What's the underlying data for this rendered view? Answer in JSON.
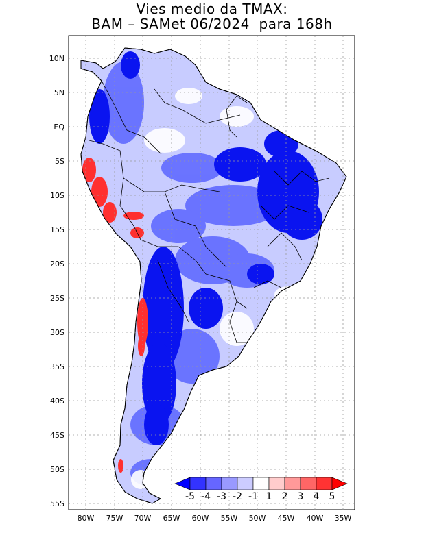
{
  "title": {
    "line1": "Vies medio da TMAX:",
    "line2": "BAM – SAMet 06/2024  para 168h"
  },
  "axes": {
    "lat_labels": [
      "10N",
      "5N",
      "EQ",
      "5S",
      "10S",
      "15S",
      "20S",
      "25S",
      "30S",
      "35S",
      "40S",
      "45S",
      "50S",
      "55S"
    ],
    "lon_labels": [
      "80W",
      "75W",
      "70W",
      "65W",
      "60W",
      "55W",
      "50W",
      "45W",
      "40W",
      "35W"
    ]
  },
  "colorbar": {
    "labels": [
      "-5",
      "-4",
      "-3",
      "-2",
      "-1",
      "1",
      "2",
      "3",
      "4",
      "5"
    ],
    "colors": [
      "#0000ff",
      "#3333ff",
      "#6666ff",
      "#9999ff",
      "#ccccff",
      "#ffffff",
      "#ffcccc",
      "#ff9999",
      "#ff6666",
      "#ff3333",
      "#ff0000"
    ]
  },
  "colors": {
    "land_base": "#c8ccff",
    "strong_negative": "#0a14f0",
    "negative": "#5a64ff",
    "weak_negative": "#a6acff",
    "positive": "#ff3030",
    "neutral": "#ffffff",
    "border": "#000000"
  }
}
